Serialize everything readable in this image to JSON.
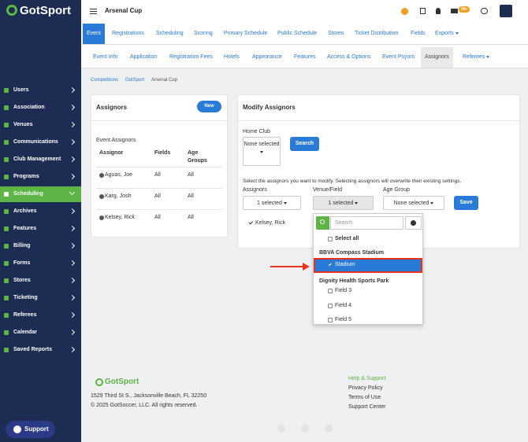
{
  "sidebar": {
    "logo": "GotSport",
    "items": [
      "Users",
      "Association",
      "Venues",
      "Communications",
      "Club Management",
      "Programs",
      "Scheduling",
      "Archives",
      "Features",
      "Billing",
      "Forms",
      "Stores",
      "Ticketing",
      "Referees",
      "Calendar",
      "Saved Reports"
    ],
    "active": 6,
    "support": "Support"
  },
  "topbar": {
    "title": "Arsenal Cup",
    "badge": "99+"
  },
  "tabs": [
    "Event",
    "Registrations",
    "Scheduling",
    "Scoring",
    "Primary Schedule",
    "Public Schedule",
    "Stores",
    "Ticket Distribution",
    "Fields",
    "Exports"
  ],
  "subtabs": [
    "Event Info",
    "Application",
    "Registration Fees",
    "Hotels",
    "Appearance",
    "Features",
    "Access & Options",
    "Event Psyors",
    "Assignors",
    "Referees"
  ],
  "breadcrumb": [
    "Competitions",
    "GotSport",
    "Arsenal Cup"
  ],
  "assignors_card": {
    "title": "Assignors",
    "new_button": "New",
    "subtitle": "Event Assignors",
    "headers": [
      "Assignor",
      "Fields",
      "Age Groups"
    ],
    "rows": [
      [
        "Aguas, Joe",
        "All",
        "All"
      ],
      [
        "Karg, Josh",
        "All",
        "All"
      ],
      [
        "Kelsey, Rick",
        "All",
        "All"
      ]
    ]
  },
  "modify_card": {
    "title": "Modify Assignors",
    "home_club_label": "Home Club",
    "home_club_value": "None selected",
    "search_button": "Search",
    "help": "Select the assignors you want to modify. Selecting assignors will overwrite their existing settings.",
    "labels": [
      "Assignors",
      "Venue/Field",
      "Age Group"
    ],
    "dropdowns": [
      "1 selected",
      "1 selected",
      "None selected"
    ],
    "save_button": "Save",
    "selected": "Kelsey, Rick"
  },
  "popup": {
    "search_placeholder": "Search",
    "select_all": "Select all",
    "groups": [
      {
        "name": "BBVA Compass Stadium",
        "options": [
          "Stadium"
        ]
      },
      {
        "name": "Dignity Health Sports Park",
        "options": [
          "Field 3",
          "Field 4",
          "Field 5"
        ]
      }
    ]
  },
  "footer": {
    "logo": "GotSport",
    "address": "1529 Third St S., Jacksonville Beach, FL 32250",
    "copyright": "© 2025 GotSoccer, LLC. All rights reserved.",
    "links": [
      "Help & Support",
      "Privacy Policy",
      "Terms of Use",
      "Support Center"
    ]
  }
}
